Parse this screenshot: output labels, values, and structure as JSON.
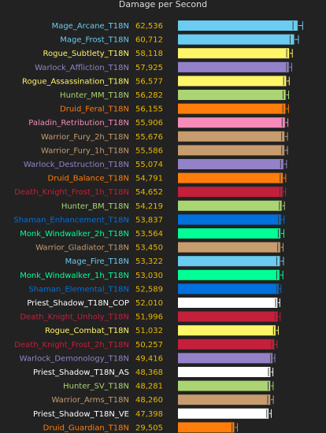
{
  "chart_data": {
    "type": "bar",
    "orientation": "horizontal",
    "title": "Damage per Second",
    "xlabel": "",
    "ylabel": "",
    "xlim": [
      0,
      75000
    ],
    "grid": false,
    "legend": "none",
    "categories": [
      "Mage_Arcane_T18N",
      "Mage_Frost_T18N",
      "Rogue_Subtlety_T18N",
      "Warlock_Affliction_T18N",
      "Rogue_Assassination_T18N",
      "Hunter_MM_T18N",
      "Druid_Feral_T18N",
      "Paladin_Retribution_T18N",
      "Warrior_Fury_2h_T18N",
      "Warrior_Fury_1h_T18N",
      "Warlock_Destruction_T18N",
      "Druid_Balance_T18N",
      "Death_Knight_Frost_1h_T18N",
      "Hunter_BM_T18N",
      "Shaman_Enhancement_T18N",
      "Monk_Windwalker_2h_T18N",
      "Warrior_Gladiator_T18N",
      "Mage_Fire_T18N",
      "Monk_Windwalker_1h_T18N",
      "Shaman_Elemental_T18N",
      "Priest_Shadow_T18N_COP",
      "Death_Knight_Unholy_T18N",
      "Rogue_Combat_T18N",
      "Death_Knight_Frost_2h_T18N",
      "Warlock_Demonology_T18N",
      "Priest_Shadow_T18N_AS",
      "Hunter_SV_T18N",
      "Warrior_Arms_T18N",
      "Priest_Shadow_T18N_VE",
      "Druid_Guardian_T18N"
    ],
    "values": [
      62536,
      60712,
      58118,
      57925,
      56577,
      56282,
      56155,
      55906,
      55676,
      55586,
      55074,
      54791,
      54652,
      54219,
      53837,
      53564,
      53450,
      53322,
      53030,
      52589,
      52010,
      51996,
      51032,
      50257,
      49416,
      48368,
      48281,
      48260,
      47398,
      29505
    ],
    "value_labels": [
      "62,536",
      "60,712",
      "58,118",
      "57,925",
      "56,577",
      "56,282",
      "56,155",
      "55,906",
      "55,676",
      "55,586",
      "55,074",
      "54,791",
      "54,652",
      "54,219",
      "53,837",
      "53,564",
      "53,450",
      "53,322",
      "53,030",
      "52,589",
      "52,010",
      "51,996",
      "51,032",
      "50,257",
      "49,416",
      "48,368",
      "48,281",
      "48,260",
      "47,398",
      "29,505"
    ],
    "error_low": [
      60000,
      58500,
      56700,
      56600,
      55100,
      54800,
      54700,
      54300,
      54100,
      54100,
      53500,
      53300,
      53100,
      52900,
      52400,
      52300,
      52000,
      51500,
      51500,
      51500,
      50900,
      50700,
      49800,
      48800,
      48300,
      47200,
      47000,
      46800,
      46300,
      28200
    ],
    "error_high": [
      65000,
      62800,
      59600,
      59300,
      58000,
      57700,
      57600,
      57300,
      57100,
      57100,
      56600,
      56200,
      56100,
      55500,
      55300,
      55200,
      54800,
      55000,
      54700,
      53700,
      53100,
      53300,
      52300,
      51700,
      50500,
      49500,
      49600,
      49700,
      48600,
      31000
    ],
    "colors": [
      "#69ccf0",
      "#69ccf0",
      "#fff569",
      "#9482c9",
      "#fff569",
      "#abd473",
      "#ff7d0a",
      "#f58cba",
      "#c79c6e",
      "#c79c6e",
      "#9482c9",
      "#ff7d0a",
      "#c41f3b",
      "#abd473",
      "#0070de",
      "#00ff96",
      "#c79c6e",
      "#69ccf0",
      "#00ff96",
      "#0070de",
      "#ffffff",
      "#c41f3b",
      "#fff569",
      "#c41f3b",
      "#9482c9",
      "#ffffff",
      "#abd473",
      "#c79c6e",
      "#ffffff",
      "#ff7d0a"
    ],
    "value_color": "#e8b800"
  }
}
